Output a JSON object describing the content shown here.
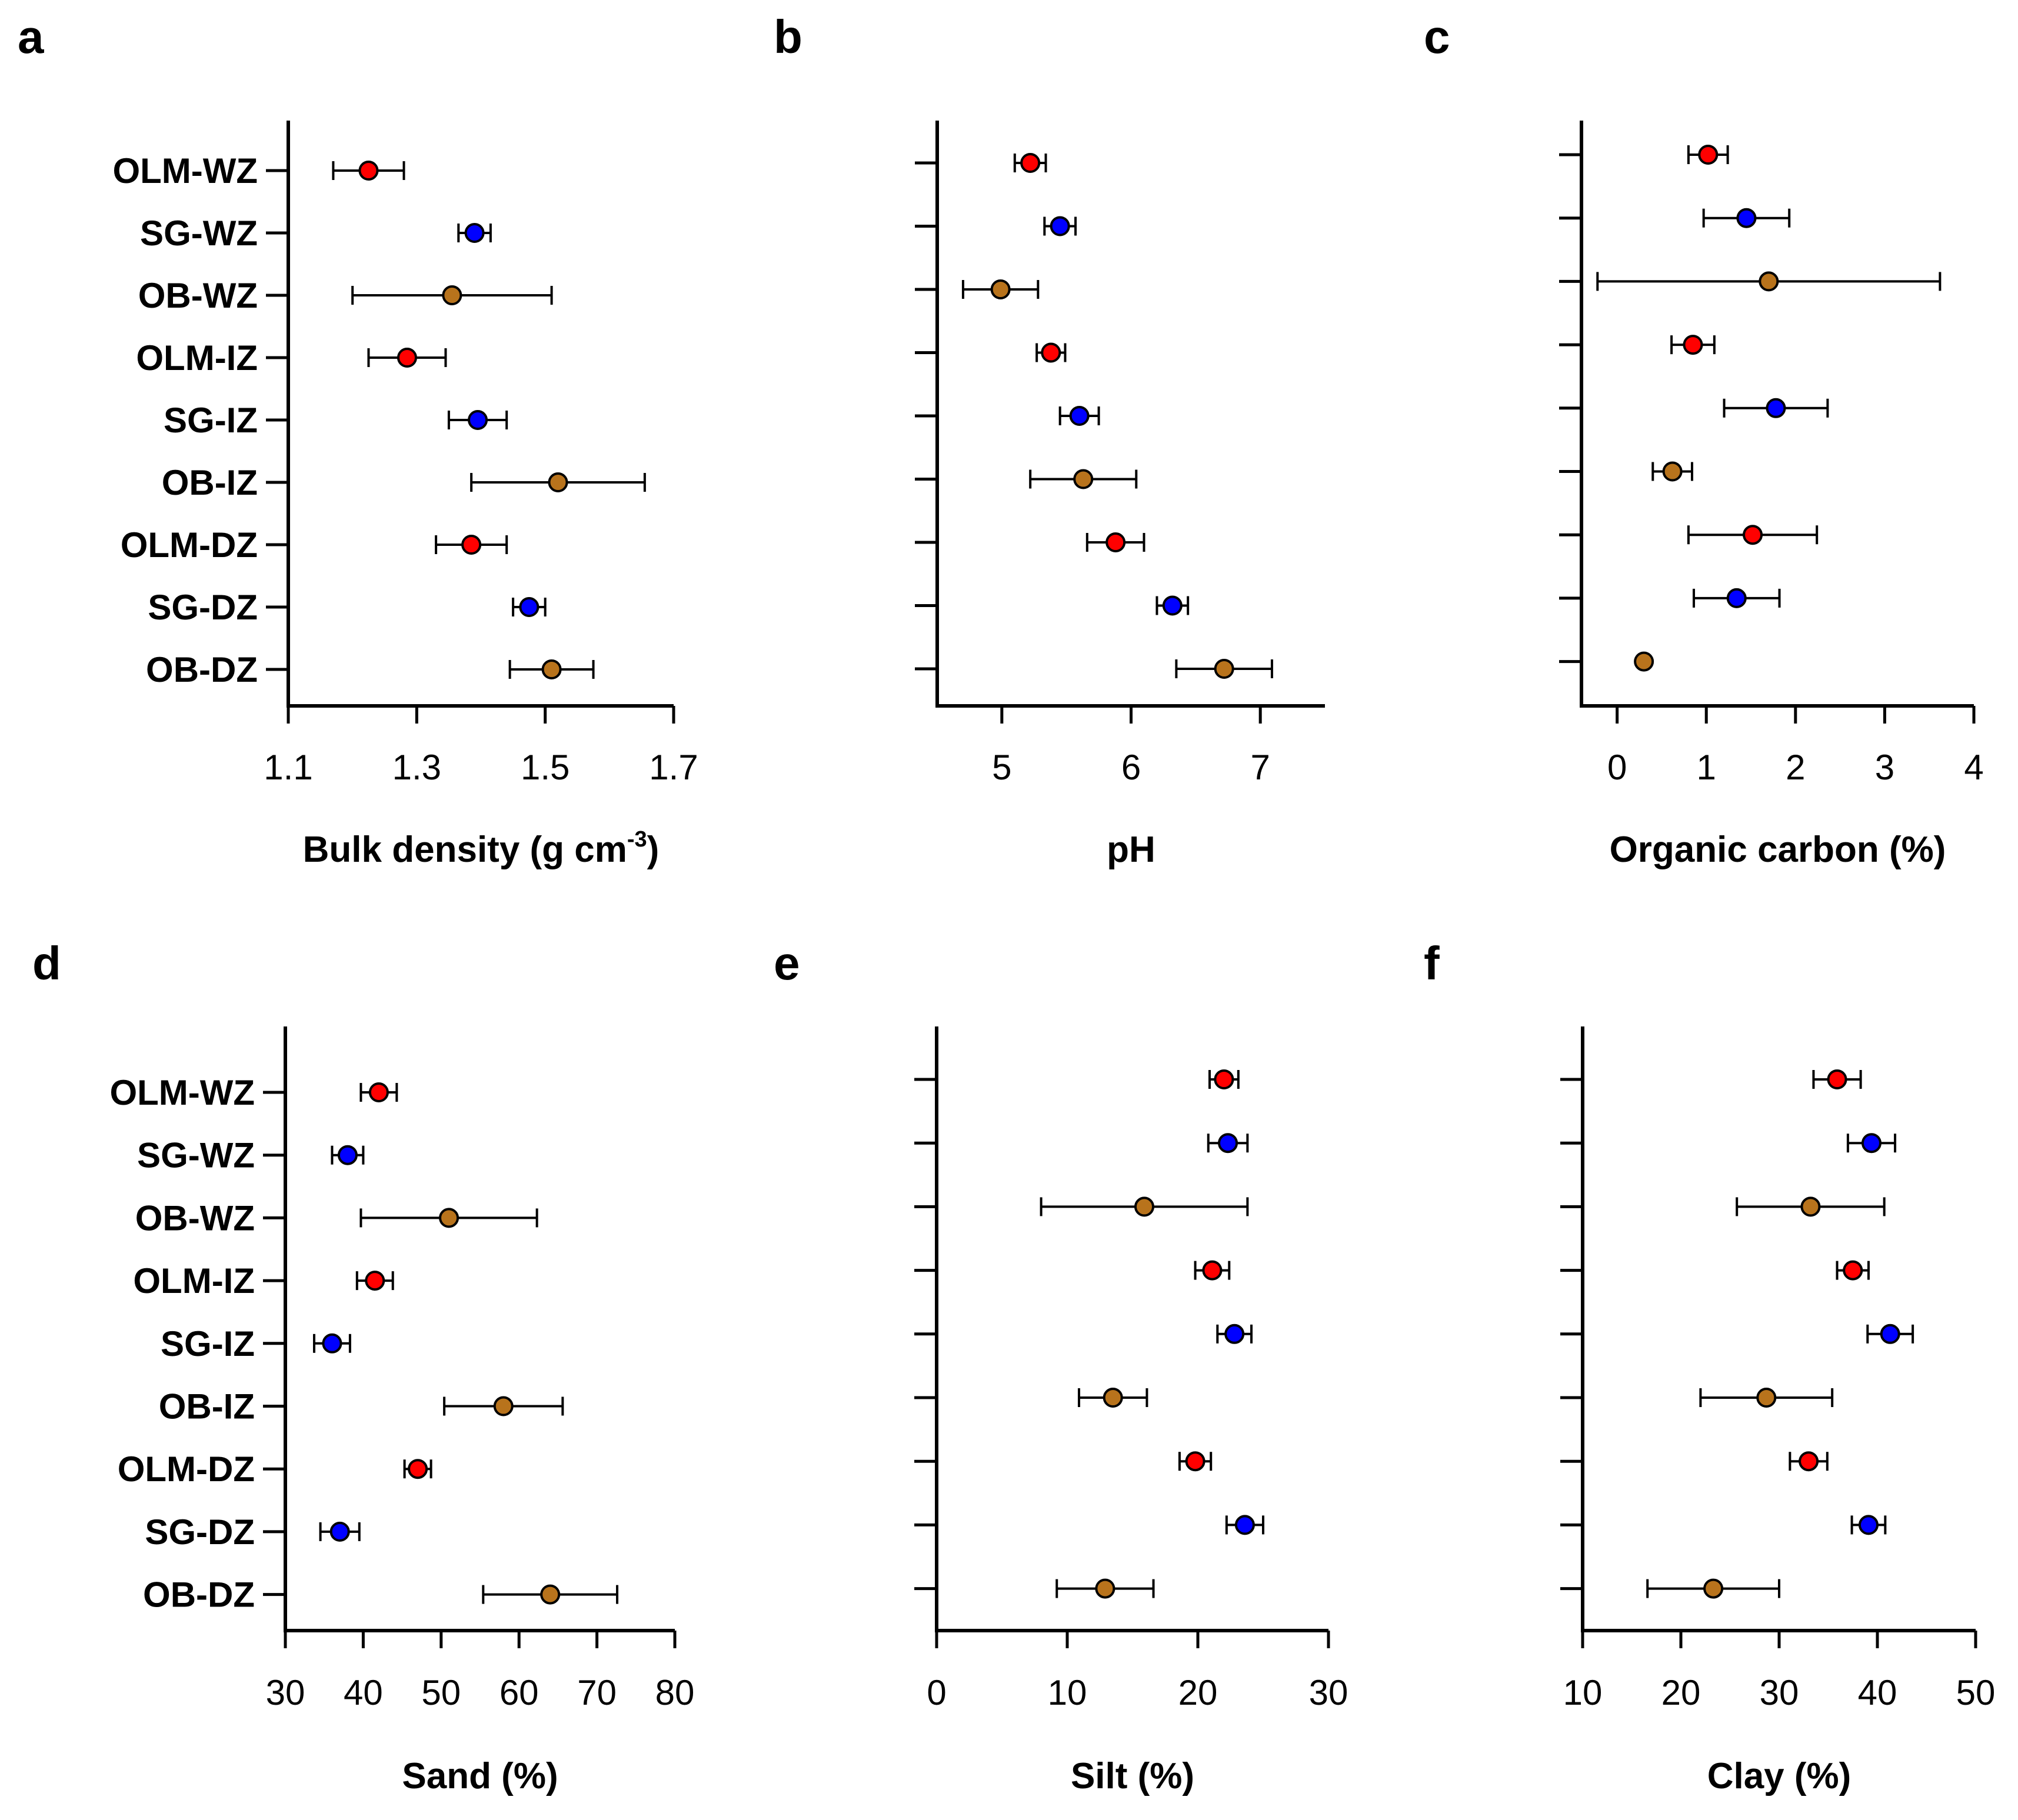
{
  "figure": {
    "categories": [
      "OLM-WZ",
      "SG-WZ",
      "OB-WZ",
      "OLM-IZ",
      "SG-IZ",
      "OB-IZ",
      "OLM-DZ",
      "SG-DZ",
      "OB-DZ"
    ],
    "category_colors": [
      "#ff0000",
      "#0000ff",
      "#b8731c",
      "#ff0000",
      "#0000ff",
      "#b8731c",
      "#ff0000",
      "#0000ff",
      "#b8731c"
    ]
  },
  "chart_data": [
    {
      "panel": "a",
      "type": "scatter",
      "xlabel": "Bulk density (g cm",
      "xlabel_sup": "-3",
      "xlabel_end": ")",
      "xlim": [
        1.1,
        1.7
      ],
      "xticks": [
        "1.1",
        "1.3",
        "1.5",
        "1.7"
      ],
      "show_category_labels": true,
      "values": [
        1.225,
        1.39,
        1.355,
        1.285,
        1.395,
        1.52,
        1.385,
        1.475,
        1.51
      ],
      "errors": [
        0.055,
        0.025,
        0.155,
        0.06,
        0.045,
        0.135,
        0.055,
        0.025,
        0.065
      ]
    },
    {
      "panel": "b",
      "type": "scatter",
      "xlabel": "pH",
      "xlim": [
        4.5,
        7.5
      ],
      "xticks": [
        "5",
        "6",
        "7"
      ],
      "show_category_labels": false,
      "values": [
        5.22,
        5.45,
        4.99,
        5.38,
        5.6,
        5.63,
        5.88,
        6.32,
        6.72
      ],
      "errors": [
        0.12,
        0.12,
        0.29,
        0.11,
        0.15,
        0.41,
        0.22,
        0.12,
        0.37
      ]
    },
    {
      "panel": "c",
      "type": "scatter",
      "xlabel": "Organic carbon (%)",
      "xlim": [
        -0.4,
        4
      ],
      "xticks": [
        "0",
        "1",
        "2",
        "3",
        "4"
      ],
      "show_category_labels": false,
      "values": [
        1.02,
        1.45,
        1.7,
        0.85,
        1.78,
        0.62,
        1.52,
        1.34,
        0.3
      ],
      "errors": [
        0.22,
        0.48,
        1.92,
        0.24,
        0.58,
        0.22,
        0.72,
        0.48,
        0.0
      ]
    },
    {
      "panel": "d",
      "type": "scatter",
      "xlabel": "Sand (%)",
      "xlim": [
        30,
        80
      ],
      "xticks": [
        "30",
        "40",
        "50",
        "60",
        "70",
        "80"
      ],
      "show_category_labels": true,
      "values": [
        42,
        38,
        51,
        41.5,
        36,
        58,
        47,
        37,
        64
      ],
      "errors": [
        2.3,
        2,
        11.3,
        2.3,
        2.3,
        7.6,
        1.7,
        2.5,
        8.6
      ]
    },
    {
      "panel": "e",
      "type": "scatter",
      "xlabel": "Silt (%)",
      "xlim": [
        0,
        30
      ],
      "xticks": [
        "0",
        "10",
        "20",
        "30"
      ],
      "show_category_labels": false,
      "values": [
        22,
        22.3,
        15.9,
        21.1,
        22.8,
        13.5,
        19.8,
        23.6,
        12.9
      ],
      "errors": [
        1.1,
        1.5,
        7.9,
        1.3,
        1.3,
        2.6,
        1.2,
        1.4,
        3.7
      ]
    },
    {
      "panel": "f",
      "type": "scatter",
      "xlabel": "Clay (%)",
      "xlim": [
        10,
        50
      ],
      "xticks": [
        "10",
        "20",
        "30",
        "40",
        "50"
      ],
      "show_category_labels": false,
      "values": [
        35.9,
        39.4,
        33.2,
        37.5,
        41.3,
        28.7,
        33,
        39.1,
        23.3
      ],
      "errors": [
        2.4,
        2.4,
        7.5,
        1.6,
        2.3,
        6.7,
        1.9,
        1.7,
        6.7
      ]
    }
  ]
}
